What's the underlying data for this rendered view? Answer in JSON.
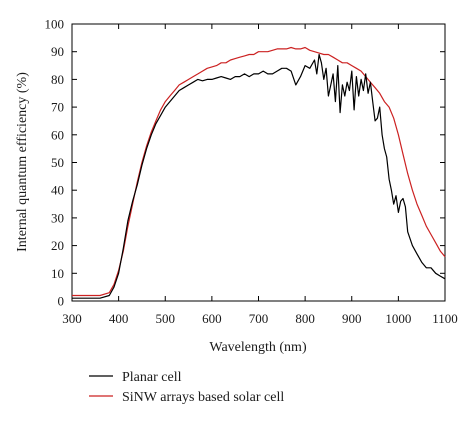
{
  "chart_data": {
    "type": "line",
    "title": "",
    "xlabel": "Wavelength (nm)",
    "ylabel": "Internal quantum efficiency (%)",
    "xlim": [
      300,
      1100
    ],
    "ylim": [
      0,
      100
    ],
    "xticks": [
      300,
      400,
      500,
      600,
      700,
      800,
      900,
      1000,
      1100
    ],
    "yticks": [
      0,
      10,
      20,
      30,
      40,
      50,
      60,
      70,
      80,
      90,
      100
    ],
    "grid": false,
    "legend_position": "below-plot",
    "series": [
      {
        "name": "Planar cell",
        "color": "#000000",
        "x": [
          300,
          320,
          340,
          360,
          380,
          390,
          400,
          410,
          420,
          430,
          440,
          450,
          460,
          470,
          480,
          490,
          500,
          510,
          520,
          530,
          540,
          550,
          560,
          570,
          580,
          590,
          600,
          610,
          620,
          630,
          640,
          650,
          660,
          670,
          680,
          690,
          700,
          710,
          720,
          730,
          740,
          750,
          760,
          770,
          780,
          790,
          800,
          810,
          820,
          825,
          830,
          835,
          840,
          845,
          850,
          855,
          860,
          865,
          870,
          875,
          880,
          885,
          890,
          895,
          900,
          905,
          910,
          915,
          920,
          925,
          930,
          935,
          940,
          945,
          950,
          955,
          960,
          965,
          970,
          975,
          980,
          985,
          990,
          995,
          1000,
          1005,
          1010,
          1015,
          1020,
          1030,
          1040,
          1050,
          1060,
          1070,
          1080,
          1090,
          1100
        ],
        "y": [
          1,
          1,
          1,
          1,
          2,
          5,
          10,
          19,
          29,
          36,
          42,
          49,
          55,
          60,
          64,
          67,
          70,
          72,
          74,
          76,
          77,
          78,
          79,
          80,
          79.5,
          80,
          80,
          80.5,
          81,
          80.5,
          80,
          81,
          81,
          82,
          81,
          82,
          82,
          83,
          82,
          82,
          83,
          84,
          84,
          83,
          78,
          81,
          85,
          84,
          87,
          82,
          89,
          86,
          80,
          84,
          74,
          78,
          82,
          72,
          85,
          68,
          78,
          74,
          79,
          76,
          83,
          69,
          81,
          74,
          80,
          76,
          82,
          75,
          79,
          72,
          65,
          66,
          70,
          60,
          55,
          52,
          44,
          40,
          35,
          38,
          32,
          36,
          37,
          34,
          25,
          20,
          17,
          14,
          12,
          12,
          10,
          9,
          8
        ]
      },
      {
        "name": "SiNW arrays based solar cell",
        "color": "#cc2222",
        "x": [
          300,
          320,
          340,
          360,
          380,
          390,
          400,
          410,
          420,
          430,
          440,
          450,
          460,
          470,
          480,
          490,
          500,
          510,
          520,
          530,
          540,
          550,
          560,
          570,
          580,
          590,
          600,
          610,
          620,
          630,
          640,
          650,
          660,
          670,
          680,
          690,
          700,
          710,
          720,
          730,
          740,
          750,
          760,
          770,
          780,
          790,
          800,
          810,
          820,
          830,
          840,
          850,
          860,
          870,
          880,
          890,
          900,
          910,
          920,
          930,
          940,
          950,
          960,
          970,
          980,
          990,
          1000,
          1010,
          1020,
          1030,
          1040,
          1050,
          1060,
          1070,
          1080,
          1090,
          1100
        ],
        "y": [
          2,
          2,
          2,
          2,
          3,
          6,
          11,
          18,
          27,
          35,
          43,
          50,
          56,
          61,
          65,
          69,
          72,
          74,
          76,
          78,
          79,
          80,
          81,
          82,
          83,
          84,
          84.5,
          85,
          86,
          86,
          87,
          87.5,
          88,
          88.5,
          89,
          89,
          90,
          90,
          90,
          90.5,
          91,
          91,
          91,
          91.5,
          91,
          91,
          91.5,
          90.5,
          90,
          89.5,
          89,
          89,
          88,
          87,
          86,
          86,
          85,
          84,
          83,
          81,
          79,
          77,
          75,
          72,
          70,
          66,
          60,
          53,
          46,
          40,
          35,
          31,
          27,
          24,
          21,
          18,
          16
        ]
      }
    ]
  }
}
